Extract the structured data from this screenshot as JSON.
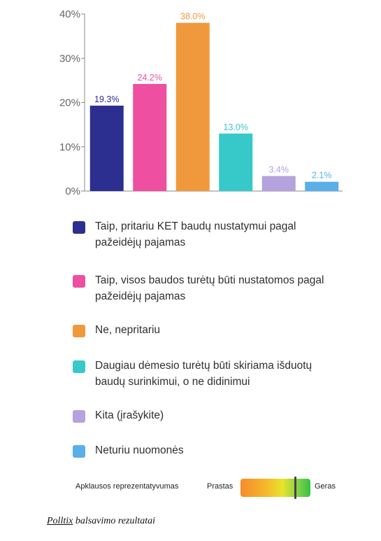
{
  "chart_data": {
    "type": "bar",
    "categories": [
      "Taip, pritariu KET baudų nustatymui pagal pažeidėjų pajamas",
      "Taip, visos baudos turėtų būti nustatomos pagal pažeidėjų pajamas",
      "Ne, nepritariu",
      "Daugiau dėmesio turėtų būti skiriama išduotų baudų surinkimui, o ne didinimui",
      "Kita (įrašykite)",
      "Neturiu nuomonės"
    ],
    "values": [
      19.3,
      24.2,
      38.0,
      13.0,
      3.4,
      2.1
    ],
    "value_labels": [
      "19.3%",
      "24.2%",
      "38.0%",
      "13.0%",
      "3.4%",
      "2.1%"
    ],
    "colors": [
      "#2c2f8f",
      "#ee4fa0",
      "#f0993c",
      "#37c9c9",
      "#b4a3dd",
      "#5aafe8"
    ],
    "label_colors": [
      "#2c2f8f",
      "#e8559f",
      "#f0993c",
      "#37c9c9",
      "#b4a3dd",
      "#5aafe8"
    ],
    "yticks": [
      "0%",
      "10%",
      "20%",
      "30%",
      "40%"
    ],
    "ytick_values": [
      0,
      10,
      20,
      30,
      40
    ],
    "ylim": [
      0,
      40
    ],
    "title": "",
    "xlabel": "",
    "ylabel": "",
    "grid": false,
    "legend_placement": "bottom"
  },
  "legend": {
    "items": [
      "Taip, pritariu KET baudų nustatymui pagal\npažeidėjų pajamas",
      "Taip, visos baudos turėtų būti nustatomos pagal\npažeidėjų pajamas",
      "Ne, nepritariu",
      "Daugiau dėmesio turėtų būti skiriama išduotų\nbaudų surinkimui, o ne didinimui",
      "Kita (įrašykite)",
      "Neturiu nuomonės"
    ]
  },
  "quality": {
    "label": "Apklausos reprezentatyvumas",
    "poor": "Prastas",
    "good": "Geras",
    "level": 0.78
  },
  "caption": {
    "source": "Polltix",
    "text": " balsavimo rezultatai"
  }
}
